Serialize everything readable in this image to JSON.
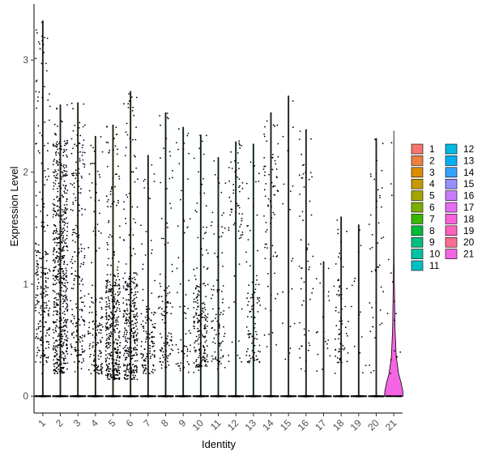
{
  "chart_data": {
    "type": "violin",
    "xlabel": "Identity",
    "ylabel": "Expression Level",
    "ylim": [
      -0.15,
      3.5
    ],
    "y_ticks": [
      0,
      1,
      2,
      3
    ],
    "grid": false,
    "legend_position": "right",
    "categories": [
      "1",
      "2",
      "3",
      "4",
      "5",
      "6",
      "7",
      "8",
      "9",
      "10",
      "11",
      "12",
      "13",
      "14",
      "15",
      "16",
      "17",
      "18",
      "19",
      "20",
      "21"
    ],
    "colors": [
      "#F8766D",
      "#EE8042",
      "#DE8C00",
      "#C59900",
      "#A3A500",
      "#7CAE00",
      "#39B600",
      "#00BA38",
      "#00BF7D",
      "#00C1A3",
      "#00BFC4",
      "#00BAE0",
      "#00B0F6",
      "#35A2FF",
      "#9590FF",
      "#C77CFF",
      "#E76BF3",
      "#FA62DB",
      "#FF62BC",
      "#FF6C91",
      "#F564E3"
    ],
    "series": [
      {
        "category": "1",
        "max": 3.35,
        "dense_range": [
          0.3,
          1.3
        ],
        "sparse_count": 90,
        "dense_count": 140
      },
      {
        "category": "2",
        "max": 2.6,
        "dense_range": [
          0.2,
          2.3
        ],
        "sparse_count": 80,
        "dense_count": 520
      },
      {
        "category": "3",
        "max": 2.62,
        "dense_range": [
          0.3,
          2.5
        ],
        "sparse_count": 60,
        "dense_count": 150
      },
      {
        "category": "4",
        "max": 2.32,
        "dense_range": [
          0.2,
          0.9
        ],
        "sparse_count": 55,
        "dense_count": 90
      },
      {
        "category": "5",
        "max": 2.42,
        "dense_range": [
          0.15,
          1.1
        ],
        "sparse_count": 90,
        "dense_count": 300
      },
      {
        "category": "6",
        "max": 2.72,
        "dense_range": [
          0.15,
          1.1
        ],
        "sparse_count": 80,
        "dense_count": 260
      },
      {
        "category": "7",
        "max": 2.15,
        "dense_range": [
          0.2,
          0.8
        ],
        "sparse_count": 40,
        "dense_count": 90
      },
      {
        "category": "8",
        "max": 2.53,
        "dense_range": [
          0.25,
          1.0
        ],
        "sparse_count": 50,
        "dense_count": 60
      },
      {
        "category": "9",
        "max": 2.4,
        "dense_range": [
          0.2,
          0.7
        ],
        "sparse_count": 35,
        "dense_count": 30
      },
      {
        "category": "10",
        "max": 2.33,
        "dense_range": [
          0.25,
          1.0
        ],
        "sparse_count": 60,
        "dense_count": 140
      },
      {
        "category": "11",
        "max": 2.13,
        "dense_range": [
          0.3,
          1.0
        ],
        "sparse_count": 40,
        "dense_count": 50
      },
      {
        "category": "12",
        "max": 2.27,
        "dense_range": [
          1.4,
          2.3
        ],
        "sparse_count": 30,
        "dense_count": 40
      },
      {
        "category": "13",
        "max": 2.25,
        "dense_range": [
          0.3,
          1.0
        ],
        "sparse_count": 30,
        "dense_count": 60
      },
      {
        "category": "14",
        "max": 2.53,
        "dense_range": [
          1.2,
          2.2
        ],
        "sparse_count": 35,
        "dense_count": 40
      },
      {
        "category": "15",
        "max": 2.68,
        "dense_range": [
          0.3,
          2.7
        ],
        "sparse_count": 15,
        "dense_count": 5
      },
      {
        "category": "16",
        "max": 2.38,
        "dense_range": [
          0.4,
          2.3
        ],
        "sparse_count": 35,
        "dense_count": 20
      },
      {
        "category": "17",
        "max": 1.2,
        "dense_range": [
          0.3,
          1.2
        ],
        "sparse_count": 15,
        "dense_count": 5
      },
      {
        "category": "18",
        "max": 1.6,
        "dense_range": [
          0.3,
          1.1
        ],
        "sparse_count": 25,
        "dense_count": 40
      },
      {
        "category": "19",
        "max": 1.53,
        "dense_range": [
          0.2,
          1.5
        ],
        "sparse_count": 10,
        "dense_count": 4
      },
      {
        "category": "20",
        "max": 2.3,
        "dense_range": [
          0.6,
          2.3
        ],
        "sparse_count": 25,
        "dense_count": 20
      },
      {
        "category": "21",
        "max": 2.37,
        "dense_range": [
          0.2,
          1.0
        ],
        "sparse_count": 10,
        "dense_count": 6
      }
    ]
  }
}
